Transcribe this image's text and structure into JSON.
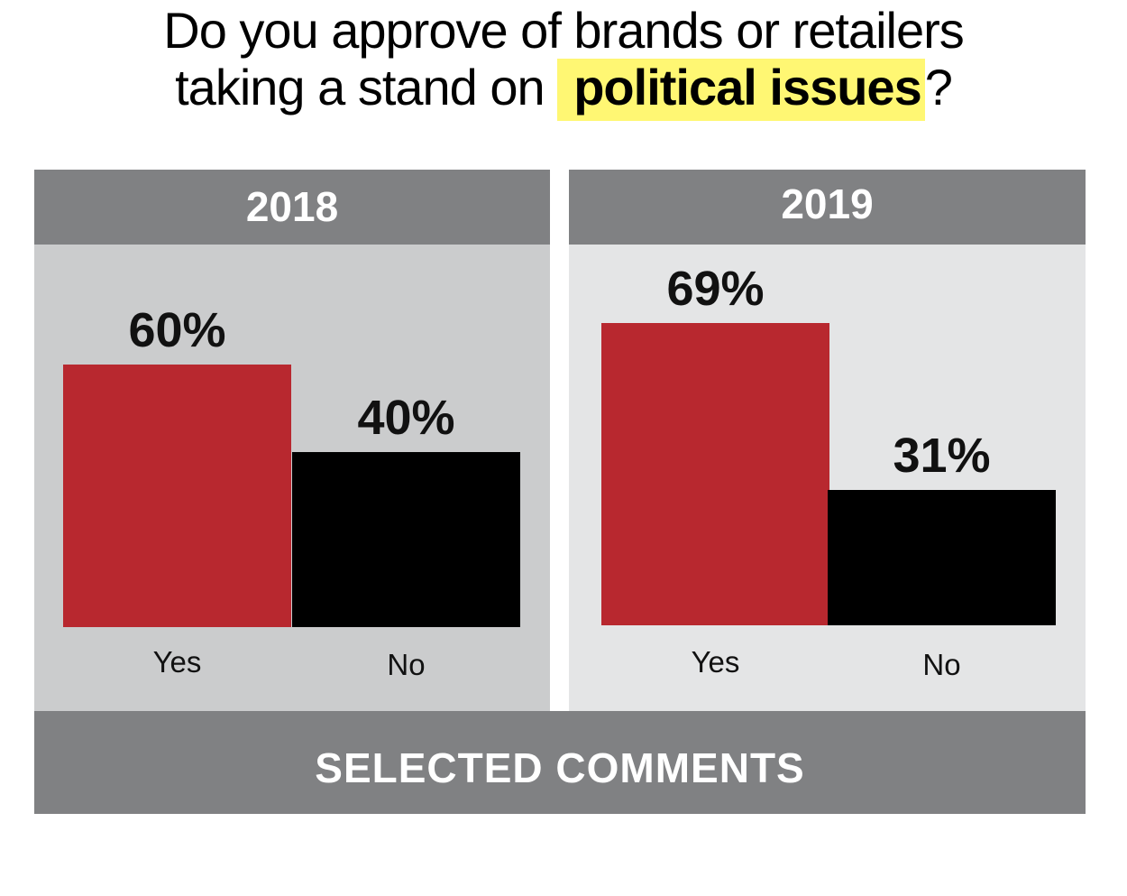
{
  "title": {
    "line1": "Do you approve of brands or retailers",
    "line2_prefix": "taking a stand on ",
    "line2_highlight": "political issues",
    "line2_suffix": "?"
  },
  "colors": {
    "yes": "#b8282f",
    "no": "#000000",
    "header": "#808183",
    "highlight": "#fff773"
  },
  "chart_data": [
    {
      "type": "bar",
      "title": "2018",
      "categories": [
        "Yes",
        "No"
      ],
      "values": [
        60,
        40
      ],
      "value_labels": [
        "60%",
        "40%"
      ],
      "ylim": [
        0,
        100
      ]
    },
    {
      "type": "bar",
      "title": "2019",
      "categories": [
        "Yes",
        "No"
      ],
      "values": [
        69,
        31
      ],
      "value_labels": [
        "69%",
        "31%"
      ],
      "ylim": [
        0,
        100
      ]
    }
  ],
  "footer": {
    "label": "SELECTED COMMENTS"
  }
}
